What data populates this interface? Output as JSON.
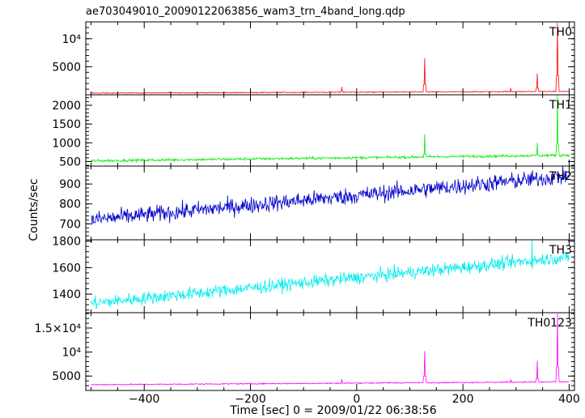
{
  "chart_data": {
    "type": "line",
    "title": "ae703049010_20090122063856_wam3_trn_4band_long.qdp",
    "xlabel": "Time [sec] 0 = 2009/01/22 06:38:56",
    "ylabel": "Counts/sec",
    "xlim": [
      -510,
      410
    ],
    "x_ticks": [
      -400,
      -200,
      0,
      200,
      400
    ],
    "x_tick_labels": [
      "−400",
      "−200",
      "0",
      "200",
      "400"
    ],
    "grid": false,
    "panels": [
      {
        "name": "TH0",
        "color": "#ff0000",
        "ylim": [
          0,
          13000
        ],
        "yticks": [
          5000,
          10000
        ],
        "ytick_labels": [
          "5000",
          "10⁴"
        ],
        "x_range": [
          -500,
          400
        ],
        "baseline_start": 300,
        "baseline_end": 600,
        "noise": 60,
        "spikes": [
          [
            -28,
            1400
          ],
          [
            128,
            6500
          ],
          [
            290,
            1200
          ],
          [
            340,
            3800
          ],
          [
            378,
            12800
          ]
        ]
      },
      {
        "name": "TH1",
        "color": "#00ee00",
        "ylim": [
          380,
          2280
        ],
        "yticks": [
          500,
          1000,
          1500,
          2000
        ],
        "ytick_labels": [
          "500",
          "1000",
          "1500",
          "2000"
        ],
        "x_range": [
          -500,
          400
        ],
        "baseline_start": 520,
        "baseline_end": 670,
        "noise": 25,
        "spikes": [
          [
            128,
            1230
          ],
          [
            340,
            1000
          ],
          [
            378,
            2300
          ]
        ]
      },
      {
        "name": "TH2",
        "color": "#0000cc",
        "ylim": [
          620,
          990
        ],
        "yticks": [
          700,
          800,
          900
        ],
        "ytick_labels": [
          "700",
          "800",
          "900"
        ],
        "x_range": [
          -500,
          400
        ],
        "baseline_start": 720,
        "baseline_end": 940,
        "noise": 30,
        "spikes": []
      },
      {
        "name": "TH3",
        "color": "#00eeee",
        "ylim": [
          1260,
          1810
        ],
        "yticks": [
          1400,
          1600,
          1800
        ],
        "ytick_labels": [
          "1400",
          "1600",
          "1800"
        ],
        "x_range": [
          -500,
          400
        ],
        "baseline_start": 1330,
        "baseline_end": 1680,
        "noise": 35,
        "spikes": [
          [
            330,
            1810
          ]
        ]
      },
      {
        "name": "TH0123",
        "color": "#ff00ff",
        "ylim": [
          2000,
          18200
        ],
        "yticks": [
          5000,
          10000,
          15000
        ],
        "ytick_labels": [
          "5000",
          "10⁴",
          "1.5×10⁴"
        ],
        "x_range": [
          -500,
          400
        ],
        "baseline_start": 3200,
        "baseline_end": 3800,
        "noise": 90,
        "spikes": [
          [
            -28,
            4400
          ],
          [
            128,
            10200
          ],
          [
            290,
            4300
          ],
          [
            340,
            8200
          ],
          [
            378,
            18000
          ]
        ]
      }
    ]
  }
}
